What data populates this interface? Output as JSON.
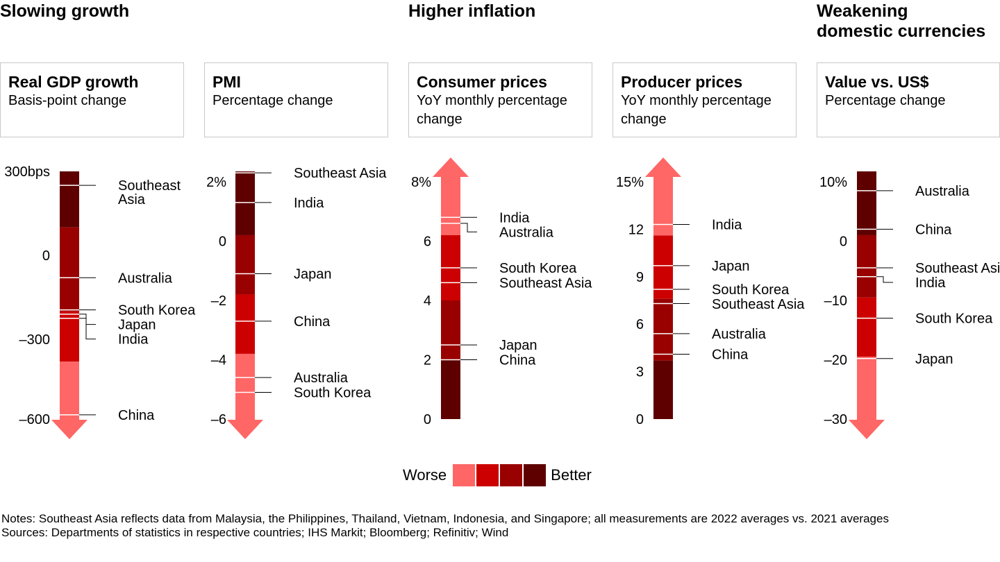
{
  "sections": [
    {
      "title_lines": [
        "Slowing growth"
      ],
      "left": 0
    },
    {
      "title_lines": [
        "Higher inflation"
      ],
      "left": 588
    },
    {
      "title_lines": [
        "Weakening",
        "domestic currencies"
      ],
      "left": 1176
    }
  ],
  "colors": {
    "worse": "#ff6666",
    "bad": "#cc0000",
    "good": "#990000",
    "better": "#5e0000"
  },
  "legend": {
    "worse_label": "Worse",
    "better_label": "Better"
  },
  "notes": "Notes: Southeast Asia reflects data from Malaysia, the Philippines, Thailand, Vietnam, Indonesia, and Singapore; all measurements are 2022 averages vs. 2021 averages",
  "sources": "Sources: Departments of statistics in respective countries; IHS Markit; Bloomberg; Refinitiv; Wind",
  "chart_data": [
    {
      "type": "bar",
      "title": "Real GDP growth",
      "subtitle": "Basis-point change",
      "direction": "down",
      "ticks": [
        {
          "value": 300,
          "label": "300bps"
        },
        {
          "value": 0,
          "label": "0"
        },
        {
          "value": -300,
          "label": "–300"
        },
        {
          "value": -600,
          "label": "–600"
        }
      ],
      "bands": [
        {
          "from": 300,
          "to": 100,
          "level": "better"
        },
        {
          "from": 100,
          "to": -200,
          "level": "good"
        },
        {
          "from": -200,
          "to": -380,
          "level": "bad"
        },
        {
          "from": -380,
          "to": -620,
          "level": "worse"
        }
      ],
      "markers": [
        {
          "label": "Southeast Asia",
          "value": 250
        },
        {
          "label": "Australia",
          "value": -80
        },
        {
          "label": "South Korea",
          "value": -195
        },
        {
          "label": "Japan",
          "value": -210
        },
        {
          "label": "India",
          "value": -225
        },
        {
          "label": "China",
          "value": -570
        }
      ]
    },
    {
      "type": "bar",
      "title": "PMI",
      "subtitle": "Percentage change",
      "direction": "down",
      "ticks": [
        {
          "value": 2,
          "label": "2%"
        },
        {
          "value": 0,
          "label": "0"
        },
        {
          "value": -2,
          "label": "–2"
        },
        {
          "value": -4,
          "label": "–4"
        },
        {
          "value": -6,
          "label": "–6"
        }
      ],
      "bands": [
        {
          "from": 2.5,
          "to": 2.35,
          "level": "good"
        },
        {
          "from": 2.35,
          "to": 0.2,
          "level": "better"
        },
        {
          "from": 0.2,
          "to": -1.8,
          "level": "good"
        },
        {
          "from": -1.8,
          "to": -3.8,
          "level": "bad"
        },
        {
          "from": -3.8,
          "to": -6.3,
          "level": "worse"
        }
      ],
      "markers": [
        {
          "label": "Southeast Asia",
          "value": 2.3
        },
        {
          "label": "India",
          "value": 1.3
        },
        {
          "label": "Japan",
          "value": -1.1
        },
        {
          "label": "China",
          "value": -2.7
        },
        {
          "label": "Australia",
          "value": -4.6
        },
        {
          "label": "South Korea",
          "value": -5.1
        }
      ]
    },
    {
      "type": "bar",
      "title": "Consumer prices",
      "subtitle": "YoY monthly percentage change",
      "direction": "up",
      "ticks": [
        {
          "value": 8,
          "label": "8%"
        },
        {
          "value": 6,
          "label": "6"
        },
        {
          "value": 4,
          "label": "4"
        },
        {
          "value": 2,
          "label": "2"
        },
        {
          "value": 0,
          "label": "0"
        }
      ],
      "bands": [
        {
          "from": 8.5,
          "to": 6.2,
          "level": "worse"
        },
        {
          "from": 6.2,
          "to": 4.0,
          "level": "bad"
        },
        {
          "from": 4.0,
          "to": 2.0,
          "level": "good"
        },
        {
          "from": 2.0,
          "to": 0,
          "level": "better"
        }
      ],
      "markers": [
        {
          "label": "India",
          "value": 6.8
        },
        {
          "label": "Australia",
          "value": 6.6
        },
        {
          "label": "South Korea",
          "value": 5.1
        },
        {
          "label": "Southeast Asia",
          "value": 4.6
        },
        {
          "label": "Japan",
          "value": 2.5
        },
        {
          "label": "China",
          "value": 2.0
        }
      ]
    },
    {
      "type": "bar",
      "title": "Producer prices",
      "subtitle": "YoY monthly percentage change",
      "direction": "up",
      "ticks": [
        {
          "value": 15,
          "label": "15%"
        },
        {
          "value": 12,
          "label": "12"
        },
        {
          "value": 9,
          "label": "9"
        },
        {
          "value": 6,
          "label": "6"
        },
        {
          "value": 3,
          "label": "3"
        },
        {
          "value": 0,
          "label": "0"
        }
      ],
      "bands": [
        {
          "from": 16,
          "to": 11.6,
          "level": "worse"
        },
        {
          "from": 11.6,
          "to": 7.6,
          "level": "bad"
        },
        {
          "from": 7.6,
          "to": 3.7,
          "level": "good"
        },
        {
          "from": 3.7,
          "to": 0,
          "level": "better"
        }
      ],
      "markers": [
        {
          "label": "India",
          "value": 12.3
        },
        {
          "label": "Japan",
          "value": 9.7
        },
        {
          "label": "South Korea",
          "value": 8.2
        },
        {
          "label": "Southeast Asia",
          "value": 7.3
        },
        {
          "label": "Australia",
          "value": 5.4
        },
        {
          "label": "China",
          "value": 4.1
        }
      ]
    },
    {
      "type": "bar",
      "title": "Value vs. US$",
      "subtitle": "Percentage change",
      "direction": "down",
      "ticks": [
        {
          "value": 10,
          "label": "10%"
        },
        {
          "value": 0,
          "label": "0"
        },
        {
          "value": -10,
          "label": "–10"
        },
        {
          "value": -20,
          "label": "–20"
        },
        {
          "value": -30,
          "label": "–30"
        }
      ],
      "bands": [
        {
          "from": 12,
          "to": 1,
          "level": "better"
        },
        {
          "from": 1,
          "to": -9.5,
          "level": "good"
        },
        {
          "from": -9.5,
          "to": -19.5,
          "level": "bad"
        },
        {
          "from": -19.5,
          "to": -32,
          "level": "worse"
        }
      ],
      "markers": [
        {
          "label": "Australia",
          "value": 8.5
        },
        {
          "label": "China",
          "value": 2
        },
        {
          "label": "Southeast Asia",
          "value": -4.5
        },
        {
          "label": "India",
          "value": -6
        },
        {
          "label": "South Korea",
          "value": -13
        },
        {
          "label": "Japan",
          "value": -19.8
        }
      ]
    }
  ]
}
